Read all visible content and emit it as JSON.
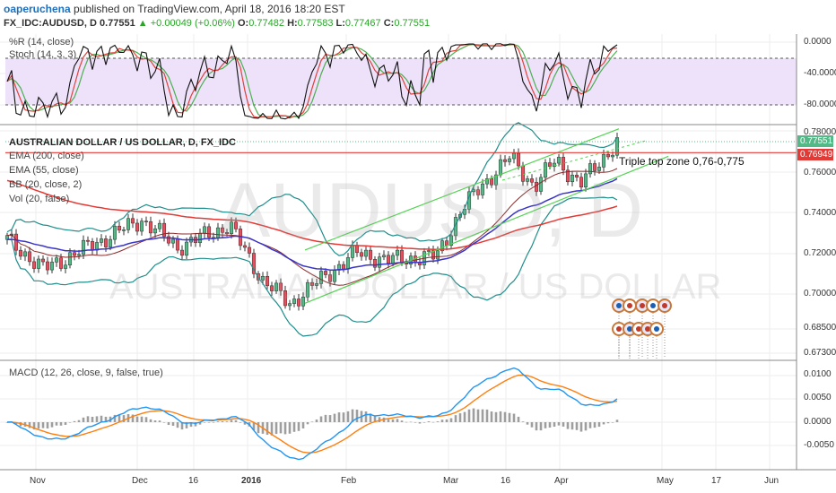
{
  "header": {
    "author": "oaperuchena",
    "published_text": "published on TradingView.com, April 18, 2016 18:20 EST",
    "symbol": "FX_IDC:AUDUSD, D",
    "last": "0.77551",
    "change": "▲ +0.00049 (+0.06%)",
    "o_label": "O:",
    "o": "0.77482",
    "h_label": "H:",
    "h": "0.77583",
    "l_label": "L:",
    "l": "0.77467",
    "c_label": "C:",
    "c": "0.77551"
  },
  "colors": {
    "up": "#53b987",
    "down": "#eb4d5c",
    "ema200": "#e53935",
    "ema55": "#3a35c9",
    "bb": "#1f8f8c",
    "bb_basis": "#8b2a2a",
    "channel": "#52d352",
    "macd": "#2196f3",
    "signal": "#ff7f0e",
    "wr": "#111111",
    "stochk": "#e0413a",
    "stochd": "#4caf50",
    "stoch_band": "#e9dcf8"
  },
  "oscillator_panel": {
    "labels": [
      "%R (14, close)",
      "Stoch (14, 3, 3)"
    ],
    "ticks": [
      "0.0000",
      "-40.0000",
      "-80.0000"
    ]
  },
  "main_panel": {
    "title": "AUSTRALIAN DOLLAR / US DOLLAR, D, FX_IDC",
    "labels": [
      "EMA (200, close)",
      "EMA (55, close)",
      "BB (20, close, 2)",
      "Vol (20, false)"
    ],
    "ticks": [
      "0.78000",
      "0.76000",
      "0.74000",
      "0.72000",
      "0.70000",
      "0.68500",
      "0.67300"
    ],
    "price_tag": "0.77551",
    "level_tag": "0.76949",
    "annotation": "Triple top zone 0,76-0,775",
    "watermark_symbol": "AUDUSD, D",
    "watermark_name": "AUSTRALIAN DOLLAR / US DOLLAR"
  },
  "macd_panel": {
    "label": "MACD (12, 26, close, 9, false, true)",
    "ticks": [
      "0.0100",
      "0.0050",
      "0.0000",
      "-0.0050"
    ]
  },
  "x_axis": {
    "ticks": [
      {
        "label": "Nov",
        "bold": false
      },
      {
        "label": "Dec",
        "bold": false
      },
      {
        "label": "16",
        "bold": false
      },
      {
        "label": "2016",
        "bold": true
      },
      {
        "label": "Feb",
        "bold": false
      },
      {
        "label": "Mar",
        "bold": false
      },
      {
        "label": "16",
        "bold": false
      },
      {
        "label": "Apr",
        "bold": false
      },
      {
        "label": "May",
        "bold": false
      },
      {
        "label": "17",
        "bold": false
      },
      {
        "label": "Jun",
        "bold": false
      }
    ]
  },
  "chart_data": {
    "type": "candlestick",
    "symbol": "AUDUSD",
    "timeframe": "D",
    "date_range": [
      "2015-10-26",
      "2016-04-18"
    ],
    "last_close": 0.77551,
    "support_resistance_level": 0.76949,
    "annotation": "Triple top zone 0,76-0,775",
    "close_path": [
      {
        "date": "2015-10-26",
        "close": 0.723
      },
      {
        "date": "2015-11-06",
        "close": 0.706
      },
      {
        "date": "2015-12-04",
        "close": 0.733
      },
      {
        "date": "2015-12-14",
        "close": 0.718
      },
      {
        "date": "2015-12-29",
        "close": 0.73
      },
      {
        "date": "2016-01-07",
        "close": 0.701
      },
      {
        "date": "2016-01-15",
        "close": 0.687
      },
      {
        "date": "2016-01-21",
        "close": 0.696
      },
      {
        "date": "2016-02-03",
        "close": 0.715
      },
      {
        "date": "2016-02-12",
        "close": 0.711
      },
      {
        "date": "2016-02-26",
        "close": 0.713
      },
      {
        "date": "2016-03-04",
        "close": 0.738
      },
      {
        "date": "2016-03-10",
        "close": 0.752
      },
      {
        "date": "2016-03-18",
        "close": 0.767
      },
      {
        "date": "2016-03-25",
        "close": 0.751
      },
      {
        "date": "2016-03-31",
        "close": 0.766
      },
      {
        "date": "2016-04-07",
        "close": 0.752
      },
      {
        "date": "2016-04-13",
        "close": 0.766
      },
      {
        "date": "2016-04-18",
        "close": 0.77551
      }
    ],
    "indicators": [
      "EMA (200, close)",
      "EMA (55, close)",
      "BB (20, close, 2)",
      "%R (14, close)",
      "Stoch (14, 3, 3)",
      "MACD (12, 26, close, 9, false, true)"
    ]
  }
}
